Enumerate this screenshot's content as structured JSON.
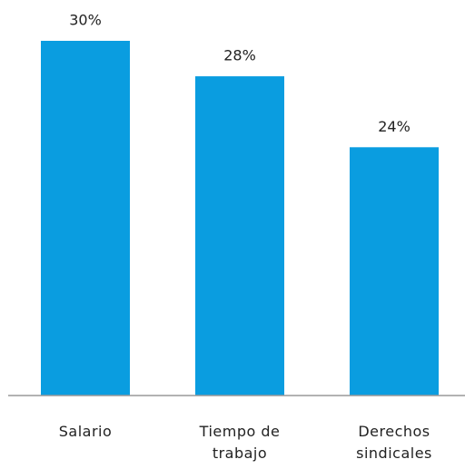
{
  "chart_data": {
    "type": "bar",
    "categories": [
      "Salario",
      "Tiempo de\ntrabajo",
      "Derechos\nsindicales"
    ],
    "values": [
      30,
      28,
      24
    ],
    "value_labels": [
      "30%",
      "28%",
      "24%"
    ],
    "color": "#0a9de0",
    "ylim": [
      10,
      30
    ]
  }
}
